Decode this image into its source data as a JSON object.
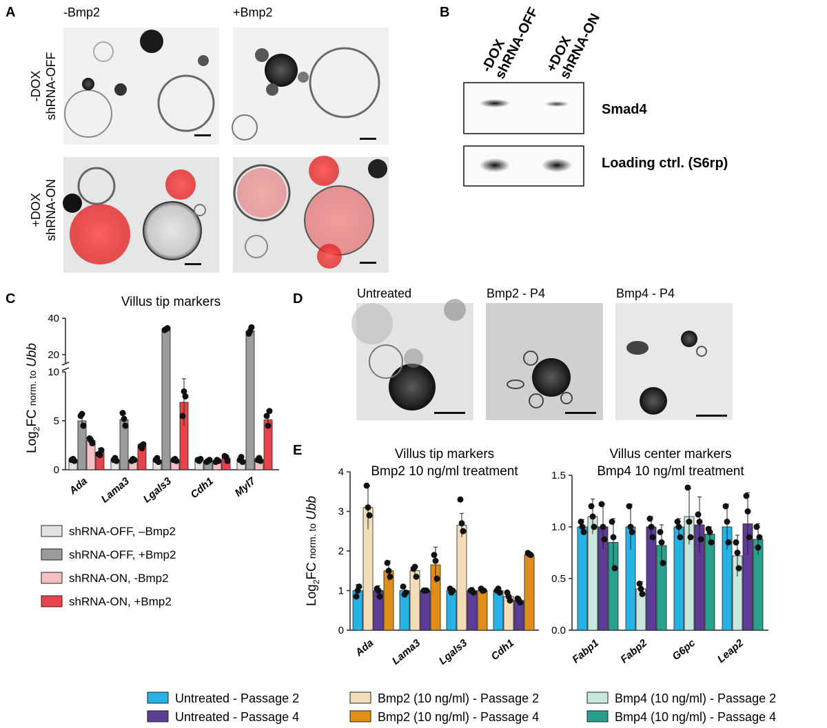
{
  "panels": {
    "A": {
      "label": "A",
      "col_headers": [
        "-Bmp2",
        "+Bmp2"
      ],
      "row_labels": [
        {
          "line1": "-DOX",
          "line2": "shRNA-OFF"
        },
        {
          "line1": "+DOX",
          "line2": "shRNA-ON"
        }
      ]
    },
    "B": {
      "label": "B",
      "lane_labels": [
        {
          "line1": "-DOX",
          "line2": "shRNA-OFF"
        },
        {
          "line1": "+DOX",
          "line2": "shRNA-ON"
        }
      ],
      "blots": [
        "Smad4",
        "Loading ctrl. (S6rp)"
      ]
    },
    "C": {
      "label": "C"
    },
    "D": {
      "label": "D",
      "images": [
        "Untreated",
        "Bmp2 - P4",
        "Bmp4 - P4"
      ]
    },
    "E": {
      "label": "E"
    }
  },
  "chart_data": [
    {
      "id": "C",
      "type": "bar",
      "title": "Villus tip markers",
      "ylabel": "Log2FC norm. to Ubb",
      "ylabel_main": "Log",
      "ylabel_sub": "2",
      "ylabel_mid": "FC",
      "ylabel_small": "norm. to",
      "ylabel_gene": "Ubb",
      "broken_axis": true,
      "lower_ylim": [
        0,
        10
      ],
      "upper_ylim": [
        15,
        40
      ],
      "lower_ticks": [
        "0",
        "5",
        "10"
      ],
      "upper_ticks": [
        "20",
        "40"
      ],
      "categories": [
        "Ada",
        "Lama3",
        "Lgals3",
        "Cdh1",
        "Myl7"
      ],
      "series": [
        {
          "name": "shRNA-OFF, –Bmp2",
          "color": "#e2e2e2",
          "values": [
            1.0,
            1.0,
            1.0,
            1.0,
            1.0
          ],
          "err": [
            0.15,
            0.15,
            0.15,
            0.15,
            0.3
          ],
          "points": [
            [
              1.0,
              0.9,
              1.1
            ],
            [
              1.0,
              0.9,
              1.2
            ],
            [
              1.0,
              0.8,
              1.2
            ],
            [
              1.0,
              1.1,
              0.9
            ],
            [
              1.0,
              0.8,
              1.3
            ]
          ]
        },
        {
          "name": "shRNA-OFF, +Bmp2",
          "color": "#9b9b9d",
          "values": [
            5.0,
            5.1,
            34.0,
            0.9,
            33.0
          ],
          "err": [
            0.5,
            0.6,
            0.5,
            0.15,
            2.0
          ],
          "points": [
            [
              5.5,
              4.5,
              5.7
            ],
            [
              5.8,
              4.5,
              5.2
            ],
            [
              33.5,
              34.5,
              34.0
            ],
            [
              0.8,
              1.0,
              0.9
            ],
            [
              31.5,
              35.0,
              33.0
            ]
          ]
        },
        {
          "name": "shRNA-ON, -Bmp2",
          "color": "#f4c0c0",
          "values": [
            3.0,
            1.0,
            1.0,
            0.9,
            1.0
          ],
          "err": [
            0.3,
            0.1,
            0.1,
            0.1,
            0.2
          ],
          "points": [
            [
              3.2,
              2.7,
              3.0
            ],
            [
              0.9,
              1.0,
              1.1
            ],
            [
              1.0,
              0.9,
              1.1
            ],
            [
              0.8,
              0.9,
              1.0
            ],
            [
              1.0,
              0.9,
              1.2
            ]
          ]
        },
        {
          "name": "shRNA-ON, +Bmp2",
          "color": "#e8434a",
          "values": [
            1.8,
            2.4,
            6.9,
            1.2,
            5.1
          ],
          "err": [
            0.4,
            0.3,
            2.4,
            0.3,
            0.9
          ],
          "points": [
            [
              1.6,
              2.0,
              1.5
            ],
            [
              2.4,
              2.6,
              2.2
            ],
            [
              5.5,
              7.5,
              8.0
            ],
            [
              1.4,
              0.9,
              1.3
            ],
            [
              5.5,
              6.0,
              4.5
            ]
          ]
        }
      ]
    },
    {
      "id": "E-left",
      "type": "bar",
      "title": "Villus tip markers",
      "subtitle": "Bmp2 10 ng/ml treatment",
      "ylabel": "Log2FC norm. to Ubb",
      "ylabel_main": "Log",
      "ylabel_sub": "2",
      "ylabel_mid": "FC",
      "ylabel_small": "norm. to",
      "ylabel_gene": "Ubb",
      "ylim": [
        0,
        4
      ],
      "yticks": [
        "0",
        "1",
        "2",
        "3",
        "4"
      ],
      "categories": [
        "Ada",
        "Lama3",
        "Lgals3",
        "Cdh1"
      ],
      "series": [
        {
          "name": "Untreated - Passage 2",
          "color": "#27b2e6",
          "values": [
            1.0,
            1.0,
            1.0,
            1.0
          ],
          "err": [
            0.15,
            0.1,
            0.05,
            0.05
          ],
          "points": [
            [
              0.85,
              1.1,
              1.0
            ],
            [
              1.1,
              0.95,
              0.9
            ],
            [
              1.05,
              1.0,
              0.95
            ],
            [
              1.0,
              0.95,
              1.05
            ]
          ]
        },
        {
          "name": "Bmp2 (10 ng/ml) - Passage 2",
          "color": "#f3dcb8",
          "values": [
            3.1,
            1.5,
            2.65,
            0.85
          ],
          "err": [
            0.55,
            0.1,
            0.3,
            0.1
          ],
          "points": [
            [
              3.65,
              2.9,
              3.1
            ],
            [
              1.55,
              1.35,
              1.6
            ],
            [
              3.3,
              2.5,
              2.7
            ],
            [
              0.95,
              0.75,
              0.85
            ]
          ]
        },
        {
          "name": "Untreated - Passage 4",
          "color": "#5d3c96",
          "values": [
            1.0,
            1.0,
            1.0,
            0.75
          ],
          "err": [
            0.12,
            0.05,
            0.08,
            0.08
          ],
          "points": [
            [
              1.05,
              0.85,
              1.0
            ],
            [
              1.0,
              1.0,
              1.0
            ],
            [
              1.0,
              0.95,
              1.0
            ],
            [
              0.8,
              0.7,
              0.75
            ]
          ]
        },
        {
          "name": "Bmp2 (10 ng/ml) - Passage 4",
          "color": "#de8e19",
          "values": [
            1.5,
            1.65,
            1.0,
            1.9
          ],
          "err": [
            0.25,
            0.45,
            0.05,
            0.05
          ],
          "points": [
            [
              1.7,
              1.35,
              1.5
            ],
            [
              1.9,
              1.3,
              1.75
            ],
            [
              1.05,
              1.0,
              1.0
            ],
            [
              1.95,
              1.9,
              1.92
            ]
          ]
        }
      ]
    },
    {
      "id": "E-right",
      "type": "bar",
      "title": "Villus center markers",
      "subtitle": "Bmp4 10 ng/ml treatment",
      "ylim": [
        0,
        1.5
      ],
      "yticks": [
        "0.0",
        "0.5",
        "1.0",
        "1.5"
      ],
      "categories": [
        "Fabp1",
        "Fabp2",
        "G6pc",
        "Leap2"
      ],
      "series": [
        {
          "name": "Untreated - Passage 2",
          "color": "#27b2e6",
          "values": [
            1.0,
            1.0,
            1.0,
            1.0
          ],
          "err": [
            0.07,
            0.22,
            0.08,
            0.22
          ],
          "points": [
            [
              1.05,
              0.95,
              1.0
            ],
            [
              1.2,
              0.95,
              1.0
            ],
            [
              1.05,
              0.9,
              1.0
            ],
            [
              1.2,
              0.85,
              1.05
            ]
          ]
        },
        {
          "name": "Bmp4 (10 ng/ml) - Passage 2",
          "color": "#c7e7dc",
          "values": [
            1.1,
            0.4,
            1.1,
            0.72
          ],
          "err": [
            0.17,
            0.07,
            0.27,
            0.2
          ],
          "points": [
            [
              1.2,
              1.0,
              1.1
            ],
            [
              0.45,
              0.35,
              0.4
            ],
            [
              1.38,
              0.9,
              1.05
            ],
            [
              0.85,
              0.6,
              0.75
            ]
          ]
        },
        {
          "name": "Untreated - Passage 4",
          "color": "#5d3c96",
          "values": [
            1.0,
            1.0,
            1.02,
            1.03
          ],
          "err": [
            0.22,
            0.1,
            0.27,
            0.3
          ],
          "points": [
            [
              1.22,
              0.88,
              1.0
            ],
            [
              1.08,
              0.9,
              1.0
            ],
            [
              1.12,
              0.88,
              1.05
            ],
            [
              1.3,
              0.9,
              1.15
            ]
          ]
        },
        {
          "name": "Bmp4 (10 ng/ml) - Passage 4",
          "color": "#27a08d",
          "values": [
            0.85,
            0.82,
            0.93,
            0.88
          ],
          "err": [
            0.23,
            0.2,
            0.07,
            0.15
          ],
          "points": [
            [
              1.05,
              0.6,
              0.9
            ],
            [
              0.95,
              0.65,
              0.85
            ],
            [
              0.98,
              0.85,
              0.95
            ],
            [
              1.0,
              0.9,
              0.8
            ]
          ]
        }
      ]
    }
  ],
  "legend_C": [
    {
      "text": "shRNA-OFF, –Bmp2",
      "color": "#e2e2e2"
    },
    {
      "text": "shRNA-OFF, +Bmp2",
      "color": "#9b9b9d"
    },
    {
      "text": "shRNA-ON, -Bmp2",
      "color": "#f4c0c0"
    },
    {
      "text": "shRNA-ON, +Bmp2",
      "color": "#e8434a"
    }
  ],
  "legend_E": [
    {
      "text": "Untreated - Passage 2",
      "color": "#27b2e6"
    },
    {
      "text": "Bmp2 (10 ng/ml) - Passage 2",
      "color": "#f3dcb8"
    },
    {
      "text": "Bmp4 (10 ng/ml) - Passage 2",
      "color": "#c7e7dc"
    },
    {
      "text": "Untreated - Passage 4",
      "color": "#5d3c96"
    },
    {
      "text": "Bmp2 (10 ng/ml) - Passage 4",
      "color": "#de8e19"
    },
    {
      "text": "Bmp4 (10 ng/ml) - Passage 4",
      "color": "#27a08d"
    }
  ]
}
